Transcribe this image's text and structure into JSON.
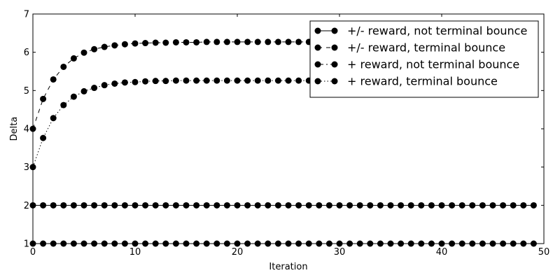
{
  "chart_data": {
    "type": "line",
    "xlabel": "Iteration",
    "ylabel": "Delta",
    "xlim": [
      0,
      50
    ],
    "ylim": [
      1,
      7
    ],
    "x_ticks": [
      "0",
      "10",
      "20",
      "30",
      "40",
      "50"
    ],
    "y_ticks": [
      "1",
      "2",
      "3",
      "4",
      "5",
      "6",
      "7"
    ],
    "grid": false,
    "legend_position": "top-right",
    "x": [
      0,
      1,
      2,
      3,
      4,
      5,
      6,
      7,
      8,
      9,
      10,
      11,
      12,
      13,
      14,
      15,
      16,
      17,
      18,
      19,
      20,
      21,
      22,
      23,
      24,
      25,
      26,
      27,
      28,
      29,
      30,
      31,
      32,
      33,
      34,
      35,
      36,
      37,
      38,
      39,
      40,
      41,
      42,
      43,
      44,
      45,
      46,
      47,
      48,
      49
    ],
    "series": [
      {
        "name": "+/- reward, not terminal bounce",
        "line_style": "solid",
        "values": [
          2,
          2,
          2,
          2,
          2,
          2,
          2,
          2,
          2,
          2,
          2,
          2,
          2,
          2,
          2,
          2,
          2,
          2,
          2,
          2,
          2,
          2,
          2,
          2,
          2,
          2,
          2,
          2,
          2,
          2,
          2,
          2,
          2,
          2,
          2,
          2,
          2,
          2,
          2,
          2,
          2,
          2,
          2,
          2,
          2,
          2,
          2,
          2,
          2,
          2
        ]
      },
      {
        "name": "+/- reward, terminal bounce",
        "line_style": "dashed",
        "values": [
          4.0,
          4.78,
          5.29,
          5.62,
          5.84,
          5.99,
          6.08,
          6.14,
          6.18,
          6.21,
          6.23,
          6.24,
          6.25,
          6.25,
          6.26,
          6.26,
          6.26,
          6.27,
          6.27,
          6.27,
          6.27,
          6.27,
          6.27,
          6.27,
          6.27,
          6.27,
          6.27,
          6.27,
          6.27,
          6.27,
          6.27,
          6.27,
          6.27,
          6.27,
          6.27,
          6.27,
          6.27,
          6.27,
          6.27,
          6.27,
          6.27,
          6.27,
          6.27,
          6.27,
          6.27,
          6.27,
          6.27,
          6.27,
          6.27,
          6.27
        ]
      },
      {
        "name": "+ reward, not terminal bounce",
        "line_style": "dashdot",
        "values": [
          1,
          1,
          1,
          1,
          1,
          1,
          1,
          1,
          1,
          1,
          1,
          1,
          1,
          1,
          1,
          1,
          1,
          1,
          1,
          1,
          1,
          1,
          1,
          1,
          1,
          1,
          1,
          1,
          1,
          1,
          1,
          1,
          1,
          1,
          1,
          1,
          1,
          1,
          1,
          1,
          1,
          1,
          1,
          1,
          1,
          1,
          1,
          1,
          1,
          1
        ]
      },
      {
        "name": "+ reward, terminal bounce",
        "line_style": "dotted",
        "values": [
          3.0,
          3.76,
          4.28,
          4.62,
          4.84,
          4.98,
          5.07,
          5.14,
          5.18,
          5.21,
          5.22,
          5.24,
          5.25,
          5.25,
          5.26,
          5.26,
          5.26,
          5.26,
          5.26,
          5.26,
          5.26,
          5.26,
          5.26,
          5.26,
          5.26,
          5.26,
          5.26,
          5.26,
          5.26,
          5.26,
          5.26,
          5.26,
          5.26,
          5.26,
          5.26,
          5.26,
          5.26,
          5.26,
          5.26,
          5.26,
          5.26,
          5.26,
          5.26,
          5.26,
          5.26,
          5.26,
          5.26,
          5.26,
          5.26,
          5.26
        ]
      }
    ]
  }
}
